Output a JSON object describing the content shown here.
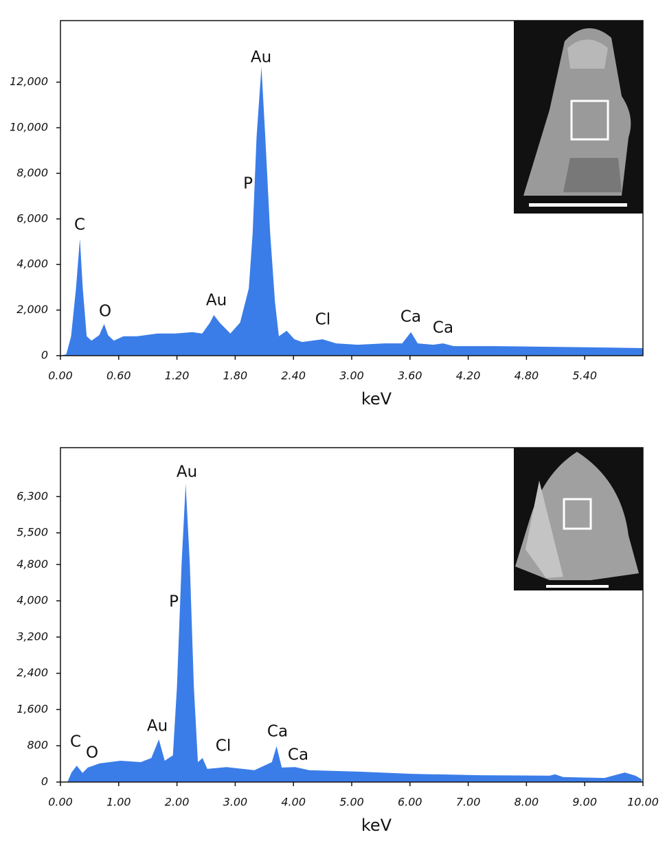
{
  "chart_data": [
    {
      "type": "area",
      "color": "#3b7de8",
      "x_label": "keV",
      "annotations": [
        "Au",
        "P",
        "C",
        "O",
        "Au",
        "Cl",
        "Ca",
        "Ca"
      ],
      "x": [
        0,
        0.06,
        0.11,
        0.16,
        0.2,
        0.23,
        0.27,
        0.32,
        0.4,
        0.45,
        0.49,
        0.55,
        0.65,
        0.79,
        1.0,
        1.18,
        1.36,
        1.46,
        1.54,
        1.58,
        1.64,
        1.75,
        1.85,
        1.94,
        1.98,
        2.02,
        2.07,
        2.11,
        2.16,
        2.21,
        2.25,
        2.33,
        2.41,
        2.49,
        2.7,
        2.84,
        3.06,
        3.34,
        3.52,
        3.61,
        3.68,
        3.84,
        3.94,
        4.05,
        4.47,
        5.04,
        5.53,
        6.0
      ],
      "values": [
        0,
        60,
        850,
        2950,
        5130,
        2950,
        850,
        660,
        900,
        1390,
        900,
        660,
        850,
        850,
        970,
        970,
        1030,
        970,
        1450,
        1780,
        1450,
        970,
        1450,
        2950,
        5370,
        9590,
        12670,
        9590,
        5370,
        2350,
        850,
        1090,
        720,
        600,
        720,
        540,
        480,
        540,
        540,
        1030,
        540,
        480,
        540,
        420,
        420,
        390,
        360,
        330
      ],
      "xlim": [
        0,
        6.0
      ],
      "ylim": [
        0,
        14700
      ],
      "xticks": [
        {
          "value": 0,
          "label": "0.00"
        },
        {
          "value": 0.6,
          "label": "0.60"
        },
        {
          "value": 1.2,
          "label": "1.20"
        },
        {
          "value": 1.8,
          "label": "1.80"
        },
        {
          "value": 2.4,
          "label": "2.40"
        },
        {
          "value": 3.0,
          "label": "3.00"
        },
        {
          "value": 3.6,
          "label": "3.60"
        },
        {
          "value": 4.2,
          "label": "4.20"
        },
        {
          "value": 4.8,
          "label": "4.80"
        },
        {
          "value": 5.4,
          "label": "5.40"
        }
      ],
      "yticks": [
        0,
        {
          "value": 2000,
          "label": "2,000"
        },
        {
          "value": 4000,
          "label": "4,000"
        },
        {
          "value": 6000,
          "label": "6,000"
        },
        {
          "value": 8000,
          "label": "8,000"
        },
        {
          "value": 10000,
          "label": "10,000"
        },
        {
          "value": 12000,
          "label": "12,000"
        }
      ]
    },
    {
      "type": "area",
      "color": "#3b7de8",
      "x_label": "keV",
      "annotations": [
        "Au",
        "P",
        "C",
        "O",
        "Au",
        "Cl",
        "Ca",
        "Ca"
      ],
      "x": [
        0.12,
        0.19,
        0.28,
        0.38,
        0.47,
        0.54,
        0.67,
        1.03,
        1.38,
        1.56,
        1.69,
        1.79,
        1.93,
        2.0,
        2.08,
        2.15,
        2.22,
        2.29,
        2.36,
        2.44,
        2.52,
        2.85,
        3.33,
        3.63,
        3.71,
        3.8,
        4.03,
        4.27,
        5.09,
        6.04,
        7.22,
        8.4,
        8.49,
        8.63,
        9.34,
        9.69,
        9.87,
        9.98
      ],
      "values": [
        0,
        210,
        360,
        200,
        320,
        350,
        410,
        470,
        440,
        530,
        940,
        470,
        590,
        2100,
        4830,
        6580,
        4830,
        2100,
        440,
        530,
        290,
        330,
        260,
        440,
        790,
        320,
        330,
        260,
        230,
        180,
        150,
        140,
        170,
        110,
        90,
        210,
        140,
        60
      ],
      "xlim": [
        0,
        10.0
      ],
      "ylim": [
        0,
        7380
      ],
      "xticks": [
        {
          "value": 0,
          "label": "0.00"
        },
        {
          "value": 1,
          "label": "1.00"
        },
        {
          "value": 2,
          "label": "2.00"
        },
        {
          "value": 3,
          "label": "3.00"
        },
        {
          "value": 4,
          "label": "4.00"
        },
        {
          "value": 5,
          "label": "5.00"
        },
        {
          "value": 6,
          "label": "6.00"
        },
        {
          "value": 7,
          "label": "7.00"
        },
        {
          "value": 8,
          "label": "8.00"
        },
        {
          "value": 9,
          "label": "9.00"
        },
        {
          "value": 10,
          "label": "10.00"
        }
      ],
      "yticks": [
        0,
        800,
        {
          "value": 1600,
          "label": "1,600"
        },
        {
          "value": 2400,
          "label": "2,400"
        },
        {
          "value": 3200,
          "label": "3,200"
        },
        {
          "value": 4000,
          "label": "4,000"
        },
        {
          "value": 4800,
          "label": "4,800"
        },
        {
          "value": 5500,
          "label": "5,500"
        },
        {
          "value": 6300,
          "label": "6,300"
        }
      ]
    }
  ]
}
